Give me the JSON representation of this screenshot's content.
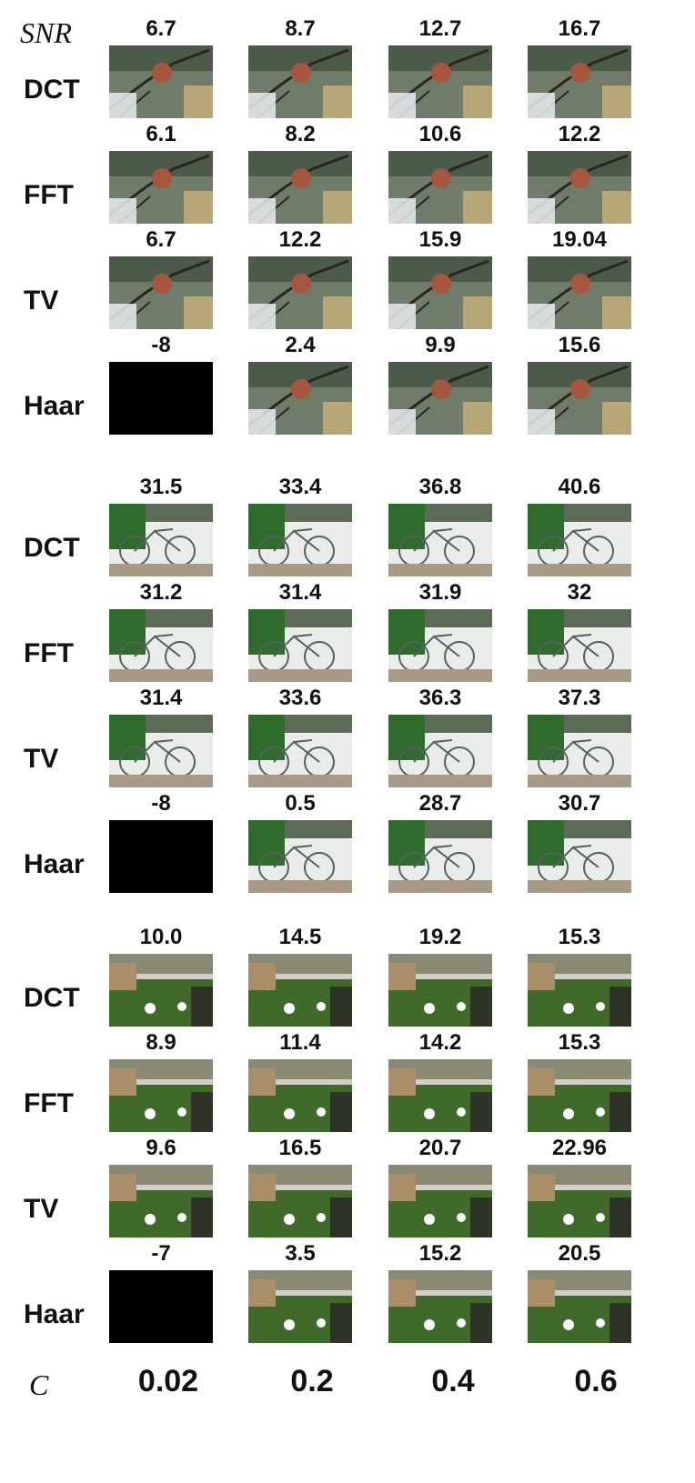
{
  "labels": {
    "snr": "SNR",
    "c": "C"
  },
  "c_values": [
    "0.02",
    "0.2",
    "0.4",
    "0.6"
  ],
  "groups": [
    {
      "scene": "branch-fruit",
      "rows": [
        {
          "method": "DCT",
          "snr": [
            "6.7",
            "8.7",
            "12.7",
            "16.7"
          ]
        },
        {
          "method": "FFT",
          "snr": [
            "6.1",
            "8.2",
            "10.6",
            "12.2"
          ]
        },
        {
          "method": "TV",
          "snr": [
            "6.7",
            "12.2",
            "15.9",
            "19.04"
          ]
        },
        {
          "method": "Haar",
          "snr": [
            "-8",
            "2.4",
            "9.9",
            "15.6"
          ]
        }
      ]
    },
    {
      "scene": "bicycles",
      "rows": [
        {
          "method": "DCT",
          "snr": [
            "31.5",
            "33.4",
            "36.8",
            "40.6"
          ]
        },
        {
          "method": "FFT",
          "snr": [
            "31.2",
            "31.4",
            "31.9",
            "32"
          ]
        },
        {
          "method": "TV",
          "snr": [
            "31.4",
            "33.6",
            "36.3",
            "37.3"
          ]
        },
        {
          "method": "Haar",
          "snr": [
            "-8",
            "0.5",
            "28.7",
            "30.7"
          ]
        }
      ]
    },
    {
      "scene": "garden",
      "rows": [
        {
          "method": "DCT",
          "snr": [
            "10.0",
            "14.5",
            "19.2",
            "15.3"
          ]
        },
        {
          "method": "FFT",
          "snr": [
            "8.9",
            "11.4",
            "14.2",
            "15.3"
          ]
        },
        {
          "method": "TV",
          "snr": [
            "9.6",
            "16.5",
            "20.7",
            "22.96"
          ]
        },
        {
          "method": "Haar",
          "snr": [
            "-7",
            "3.5",
            "15.2",
            "20.5"
          ]
        }
      ]
    }
  ]
}
